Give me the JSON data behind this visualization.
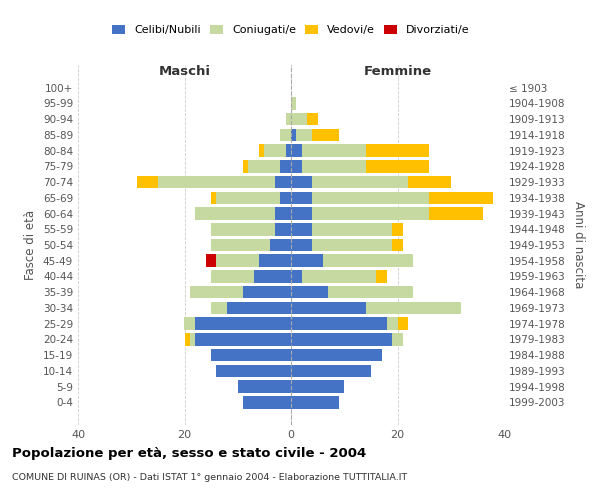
{
  "age_groups": [
    "100+",
    "95-99",
    "90-94",
    "85-89",
    "80-84",
    "75-79",
    "70-74",
    "65-69",
    "60-64",
    "55-59",
    "50-54",
    "45-49",
    "40-44",
    "35-39",
    "30-34",
    "25-29",
    "20-24",
    "15-19",
    "10-14",
    "5-9",
    "0-4"
  ],
  "birth_years": [
    "≤ 1903",
    "1904-1908",
    "1909-1913",
    "1914-1918",
    "1919-1923",
    "1924-1928",
    "1929-1933",
    "1934-1938",
    "1939-1943",
    "1944-1948",
    "1949-1953",
    "1954-1958",
    "1959-1963",
    "1964-1968",
    "1969-1973",
    "1974-1978",
    "1979-1983",
    "1984-1988",
    "1989-1993",
    "1994-1998",
    "1999-2003"
  ],
  "colors": {
    "celibi": "#4472c4",
    "coniugati": "#c5d9a0",
    "vedovi": "#ffc000",
    "divorziati": "#cc0000"
  },
  "maschi": {
    "celibi": [
      0,
      0,
      0,
      0,
      1,
      2,
      3,
      2,
      3,
      3,
      4,
      6,
      7,
      9,
      12,
      18,
      18,
      15,
      14,
      10,
      9
    ],
    "coniugati": [
      0,
      0,
      1,
      2,
      4,
      6,
      22,
      12,
      15,
      12,
      11,
      8,
      8,
      10,
      3,
      2,
      1,
      0,
      0,
      0,
      0
    ],
    "vedovi": [
      0,
      0,
      0,
      0,
      1,
      1,
      4,
      1,
      0,
      0,
      0,
      0,
      0,
      0,
      0,
      0,
      1,
      0,
      0,
      0,
      0
    ],
    "divorziati": [
      0,
      0,
      0,
      0,
      0,
      0,
      0,
      0,
      0,
      0,
      0,
      2,
      0,
      0,
      0,
      0,
      0,
      0,
      0,
      0,
      0
    ]
  },
  "femmine": {
    "celibi": [
      0,
      0,
      0,
      1,
      2,
      2,
      4,
      4,
      4,
      4,
      4,
      6,
      2,
      7,
      14,
      18,
      19,
      17,
      15,
      10,
      9
    ],
    "coniugati": [
      0,
      1,
      3,
      3,
      12,
      12,
      18,
      22,
      22,
      15,
      15,
      17,
      14,
      16,
      18,
      2,
      2,
      0,
      0,
      0,
      0
    ],
    "vedovi": [
      0,
      0,
      2,
      5,
      12,
      12,
      8,
      12,
      10,
      2,
      2,
      0,
      2,
      0,
      0,
      2,
      0,
      0,
      0,
      0,
      0
    ],
    "divorziati": [
      0,
      0,
      0,
      0,
      0,
      0,
      0,
      0,
      0,
      0,
      0,
      0,
      0,
      0,
      0,
      0,
      0,
      0,
      0,
      0,
      0
    ]
  },
  "xlim": 40,
  "title": "Popolazione per età, sesso e stato civile - 2004",
  "subtitle": "COMUNE DI RUINAS (OR) - Dati ISTAT 1° gennaio 2004 - Elaborazione TUTTITALIA.IT",
  "ylabel_left": "Fasce di età",
  "ylabel_right": "Anni di nascita",
  "xlabel_maschi": "Maschi",
  "xlabel_femmine": "Femmine",
  "legend_labels": [
    "Celibi/Nubili",
    "Coniugati/e",
    "Vedovi/e",
    "Divorziati/e"
  ],
  "bg_color": "#ffffff",
  "grid_color": "#cccccc"
}
